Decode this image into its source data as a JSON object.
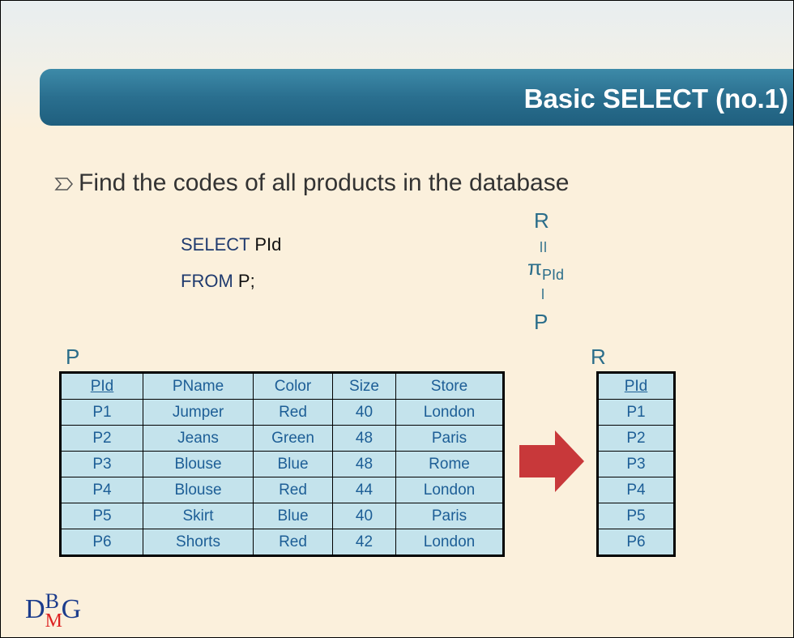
{
  "header": {
    "title": "Basic SELECT (no.1)"
  },
  "bullet": "Find the codes of all products in the database",
  "query": [
    {
      "keyword": "SELECT",
      "rest": "PId"
    },
    {
      "keyword": "FROM",
      "rest": "P;"
    }
  ],
  "algebra": {
    "result": "R",
    "operator": "π",
    "subscript": "PId",
    "source": "P"
  },
  "tables": [
    {
      "name": "P",
      "columns": [
        "PId",
        "PName",
        "Color",
        "Size",
        "Store"
      ],
      "rows": [
        [
          "P1",
          "Jumper",
          "Red",
          "40",
          "London"
        ],
        [
          "P2",
          "Jeans",
          "Green",
          "48",
          "Paris"
        ],
        [
          "P3",
          "Blouse",
          "Blue",
          "48",
          "Rome"
        ],
        [
          "P4",
          "Blouse",
          "Red",
          "44",
          "London"
        ],
        [
          "P5",
          "Skirt",
          "Blue",
          "40",
          "Paris"
        ],
        [
          "P6",
          "Shorts",
          "Red",
          "42",
          "London"
        ]
      ]
    },
    {
      "name": "R",
      "columns": [
        "PId"
      ],
      "rows": [
        [
          "P1"
        ],
        [
          "P2"
        ],
        [
          "P3"
        ],
        [
          "P4"
        ],
        [
          "P5"
        ],
        [
          "P6"
        ]
      ]
    }
  ],
  "logo": {
    "d": "D",
    "b": "B",
    "m": "M",
    "g": "G"
  }
}
